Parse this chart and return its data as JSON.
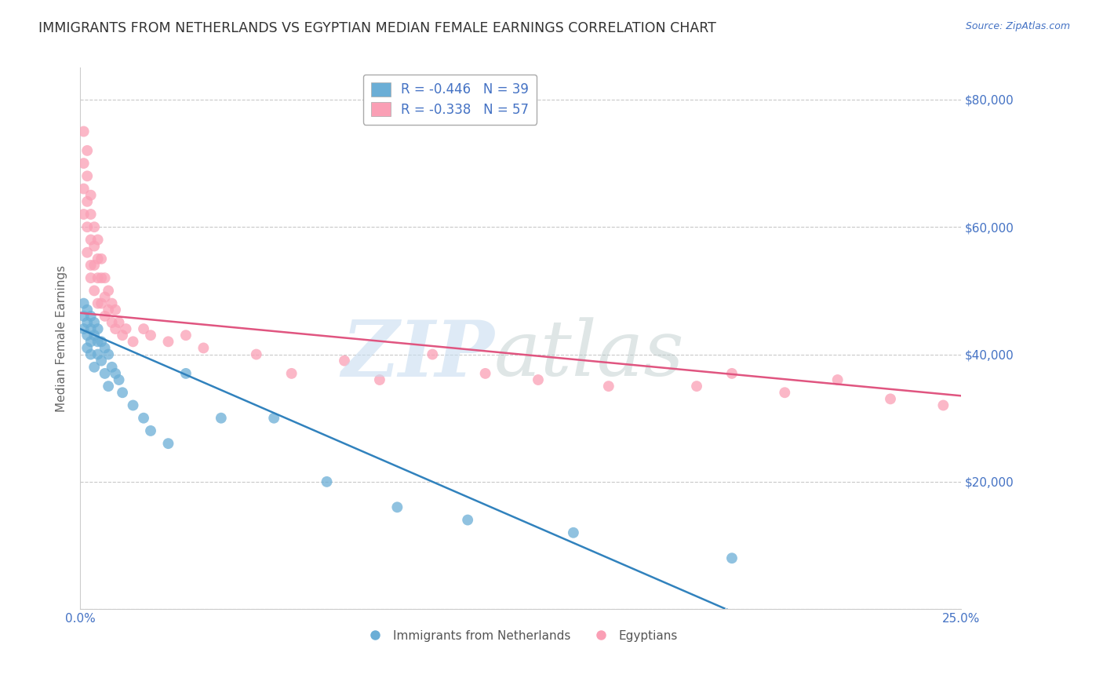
{
  "title": "IMMIGRANTS FROM NETHERLANDS VS EGYPTIAN MEDIAN FEMALE EARNINGS CORRELATION CHART",
  "source": "Source: ZipAtlas.com",
  "ylabel": "Median Female Earnings",
  "xlim": [
    0.0,
    0.25
  ],
  "ylim": [
    0,
    85000
  ],
  "yticks": [
    0,
    20000,
    40000,
    60000,
    80000
  ],
  "ytick_labels": [
    "",
    "$20,000",
    "$40,000",
    "$60,000",
    "$80,000"
  ],
  "xticks": [
    0.0,
    0.05,
    0.1,
    0.15,
    0.2,
    0.25
  ],
  "xtick_labels": [
    "0.0%",
    "",
    "",
    "",
    "",
    "25.0%"
  ],
  "legend_r1": "R = -0.446   N = 39",
  "legend_r2": "R = -0.338   N = 57",
  "legend_label1": "Immigrants from Netherlands",
  "legend_label2": "Egyptians",
  "color_blue": "#6baed6",
  "color_pink": "#fa9fb5",
  "trendline_blue": "#3182bd",
  "trendline_pink": "#e05580",
  "background_color": "#ffffff",
  "grid_color": "#bbbbbb",
  "title_color": "#333333",
  "axis_color": "#4472c4",
  "nl_intercept": 44000,
  "nl_slope": -240000,
  "eg_intercept": 46500,
  "eg_slope": -52000,
  "netherlands_x": [
    0.001,
    0.001,
    0.001,
    0.002,
    0.002,
    0.002,
    0.002,
    0.003,
    0.003,
    0.003,
    0.003,
    0.004,
    0.004,
    0.004,
    0.005,
    0.005,
    0.005,
    0.006,
    0.006,
    0.007,
    0.007,
    0.008,
    0.008,
    0.009,
    0.01,
    0.011,
    0.012,
    0.015,
    0.018,
    0.02,
    0.025,
    0.03,
    0.04,
    0.055,
    0.07,
    0.09,
    0.11,
    0.14,
    0.185
  ],
  "netherlands_y": [
    48000,
    46000,
    44000,
    47000,
    45000,
    43000,
    41000,
    46000,
    44000,
    42000,
    40000,
    45000,
    43000,
    38000,
    44000,
    42000,
    40000,
    42000,
    39000,
    41000,
    37000,
    40000,
    35000,
    38000,
    37000,
    36000,
    34000,
    32000,
    30000,
    28000,
    26000,
    37000,
    30000,
    30000,
    20000,
    16000,
    14000,
    12000,
    8000
  ],
  "egyptians_x": [
    0.001,
    0.001,
    0.001,
    0.001,
    0.002,
    0.002,
    0.002,
    0.002,
    0.002,
    0.003,
    0.003,
    0.003,
    0.003,
    0.003,
    0.004,
    0.004,
    0.004,
    0.004,
    0.005,
    0.005,
    0.005,
    0.005,
    0.006,
    0.006,
    0.006,
    0.007,
    0.007,
    0.007,
    0.008,
    0.008,
    0.009,
    0.009,
    0.01,
    0.01,
    0.011,
    0.012,
    0.013,
    0.015,
    0.018,
    0.02,
    0.025,
    0.03,
    0.035,
    0.05,
    0.06,
    0.075,
    0.085,
    0.1,
    0.115,
    0.13,
    0.15,
    0.175,
    0.185,
    0.2,
    0.215,
    0.23,
    0.245
  ],
  "egyptians_y": [
    75000,
    70000,
    66000,
    62000,
    72000,
    68000,
    64000,
    60000,
    56000,
    65000,
    62000,
    58000,
    54000,
    52000,
    60000,
    57000,
    54000,
    50000,
    58000,
    55000,
    52000,
    48000,
    55000,
    52000,
    48000,
    52000,
    49000,
    46000,
    50000,
    47000,
    48000,
    45000,
    47000,
    44000,
    45000,
    43000,
    44000,
    42000,
    44000,
    43000,
    42000,
    43000,
    41000,
    40000,
    37000,
    39000,
    36000,
    40000,
    37000,
    36000,
    35000,
    35000,
    37000,
    34000,
    36000,
    33000,
    32000
  ]
}
